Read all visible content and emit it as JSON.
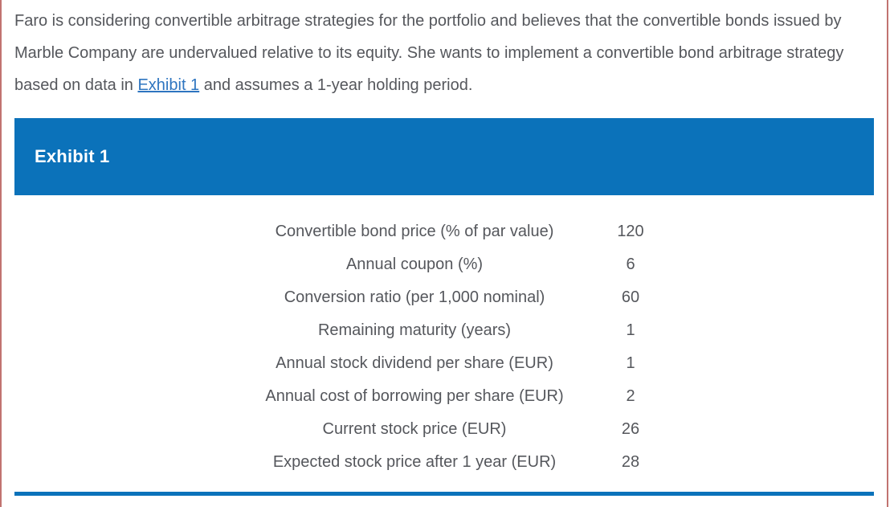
{
  "intro": {
    "text_before": "Faro is considering convertible arbitrage strategies for the portfolio and believes that the convertible bonds issued by Marble Company are undervalued relative to its equity. She wants to implement a convertible bond arbitrage strategy based on data in ",
    "link_text": "Exhibit 1",
    "text_after": " and assumes a 1-year holding period."
  },
  "exhibit": {
    "title": "Exhibit 1"
  },
  "table": {
    "rows": [
      {
        "label": "Convertible bond price (% of par value)",
        "value": "120"
      },
      {
        "label": "Annual coupon (%)",
        "value": "6"
      },
      {
        "label": "Conversion ratio (per 1,000 nominal)",
        "value": "60"
      },
      {
        "label": "Remaining maturity (years)",
        "value": "1"
      },
      {
        "label": "Annual stock dividend per share (EUR)",
        "value": "1"
      },
      {
        "label": "Annual cost of borrowing per share (EUR)",
        "value": "2"
      },
      {
        "label": "Current stock price (EUR)",
        "value": "26"
      },
      {
        "label": "Expected stock price after 1 year (EUR)",
        "value": "28"
      }
    ]
  },
  "colors": {
    "banner_blue": "#0b72ba",
    "rule_blue": "#0b72ba",
    "link_blue": "#2e75c0",
    "text_gray": "#55575c",
    "page_border_salmon": "#c17370"
  }
}
